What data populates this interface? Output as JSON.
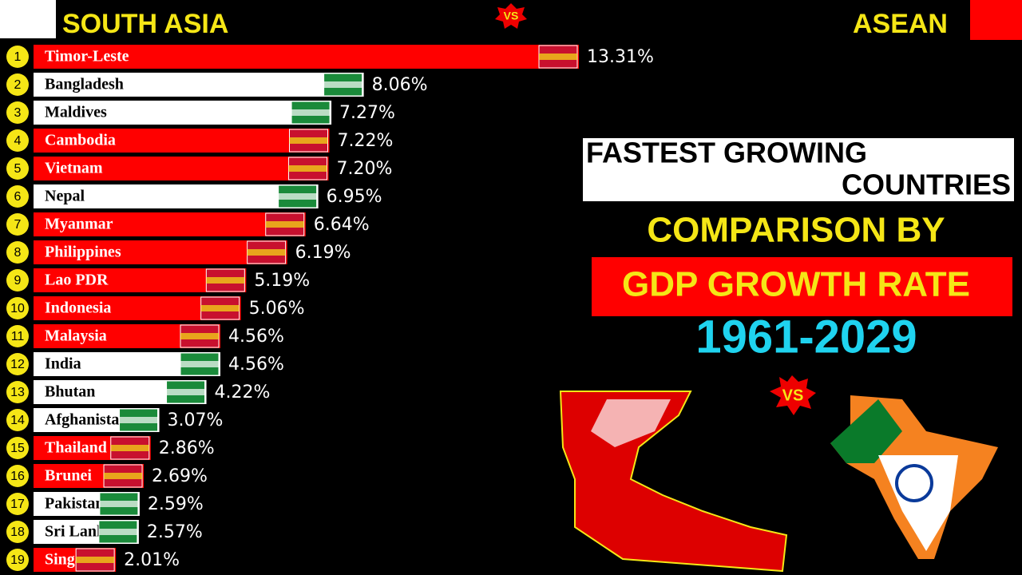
{
  "chart_data": {
    "type": "bar",
    "orientation": "horizontal",
    "legend": [
      {
        "name": "SOUTH ASIA",
        "color": "#ffffff"
      },
      {
        "name": "ASEAN",
        "color": "#ff0000"
      }
    ],
    "badge": "VS",
    "title_lines": [
      "FASTEST GROWING",
      "COUNTRIES"
    ],
    "subtitle": "COMPARISON BY",
    "highlight": "GDP GROWTH RATE",
    "period": "1961-2029",
    "ranks": [
      1,
      2,
      3,
      4,
      5,
      6,
      7,
      8,
      9,
      10,
      11,
      12,
      13,
      14,
      15,
      16,
      17,
      18,
      19
    ],
    "categories": [
      "Timor-Leste",
      "Bangladesh",
      "Maldives",
      "Cambodia",
      "Vietnam",
      "Nepal",
      "Myanmar",
      "Philippines",
      "Lao PDR",
      "Indonesia",
      "Malaysia",
      "India",
      "Bhutan",
      "Afghanistan",
      "Thailand",
      "Brunei",
      "Pakistan",
      "Sri Lanka",
      "Singapore"
    ],
    "values": [
      13.31,
      8.06,
      7.27,
      7.22,
      7.2,
      6.95,
      6.64,
      6.19,
      5.19,
      5.06,
      4.56,
      4.56,
      4.22,
      3.07,
      2.86,
      2.69,
      2.59,
      2.57,
      2.01
    ],
    "value_labels": [
      "13.31%",
      "8.06%",
      "7.27%",
      "7.22%",
      "7.20%",
      "6.95%",
      "6.64%",
      "6.19%",
      "5.19%",
      "5.06%",
      "4.56%",
      "4.56%",
      "4.22%",
      "3.07%",
      "2.86%",
      "2.69%",
      "2.59%",
      "2.57%",
      "2.01%"
    ],
    "colors": [
      "#ff0000",
      "#ffffff",
      "#ffffff",
      "#ff0000",
      "#ff0000",
      "#ffffff",
      "#ff0000",
      "#ff0000",
      "#ff0000",
      "#ff0000",
      "#ff0000",
      "#ffffff",
      "#ffffff",
      "#ffffff",
      "#ff0000",
      "#ff0000",
      "#ffffff",
      "#ffffff",
      "#ff0000"
    ]
  }
}
